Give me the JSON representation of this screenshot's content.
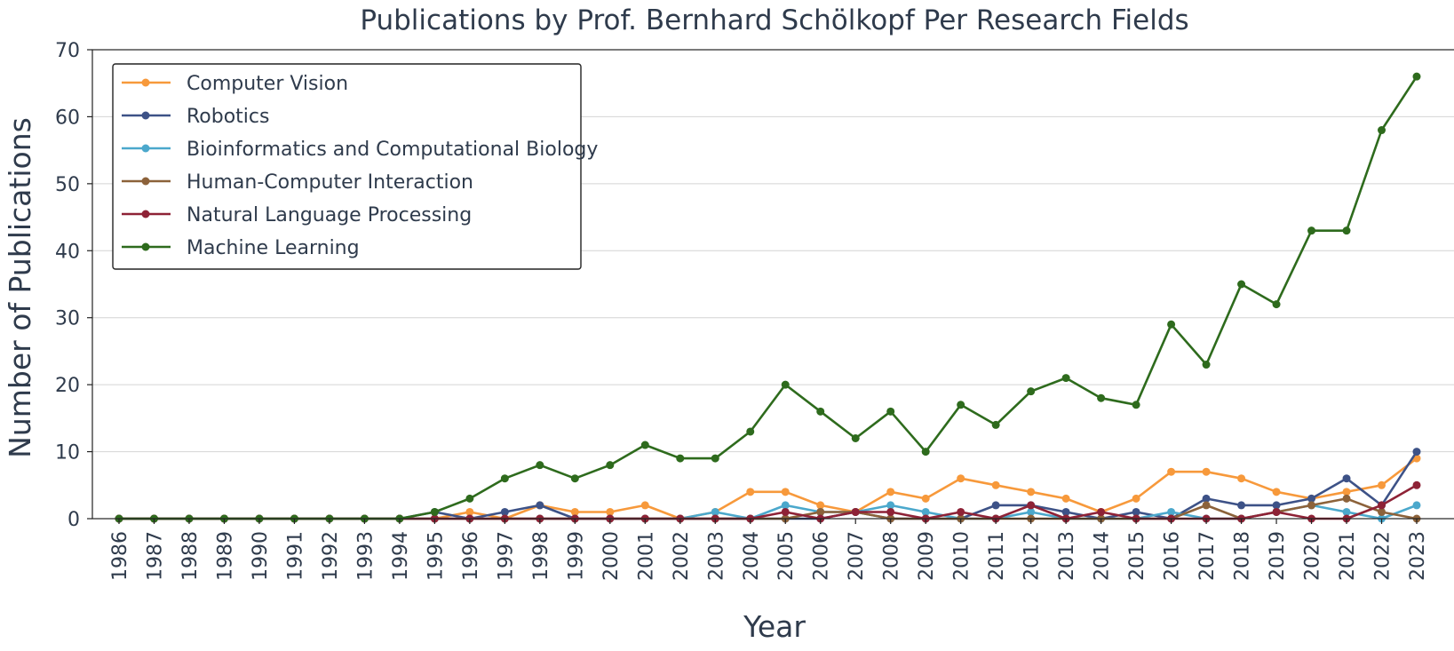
{
  "chart_data": {
    "type": "line",
    "title": "Publications by Prof. Bernhard Schölkopf Per Research Fields",
    "xlabel": "Year",
    "ylabel": "Number of Publications",
    "ylim": [
      0,
      70
    ],
    "yticks": [
      "0",
      "10",
      "20",
      "30",
      "40",
      "50",
      "60",
      "70"
    ],
    "grid": "horizontal",
    "legend_position": "top-left",
    "x": [
      "1986",
      "1987",
      "1988",
      "1989",
      "1990",
      "1991",
      "1992",
      "1993",
      "1994",
      "1995",
      "1996",
      "1997",
      "1998",
      "1999",
      "2000",
      "2001",
      "2002",
      "2003",
      "2004",
      "2005",
      "2006",
      "2007",
      "2008",
      "2009",
      "2010",
      "2011",
      "2012",
      "2013",
      "2014",
      "2015",
      "2016",
      "2017",
      "2018",
      "2019",
      "2020",
      "2021",
      "2022",
      "2023"
    ],
    "series": [
      {
        "name": "Computer Vision",
        "color": "#f7993b",
        "values": [
          0,
          0,
          0,
          0,
          0,
          0,
          0,
          0,
          0,
          0,
          1,
          0,
          2,
          1,
          1,
          2,
          0,
          1,
          4,
          4,
          2,
          1,
          4,
          3,
          6,
          5,
          4,
          3,
          1,
          3,
          7,
          7,
          6,
          4,
          3,
          4,
          5,
          9
        ]
      },
      {
        "name": "Robotics",
        "color": "#3d5287",
        "values": [
          0,
          0,
          0,
          0,
          0,
          0,
          0,
          0,
          0,
          1,
          0,
          1,
          2,
          0,
          0,
          0,
          0,
          0,
          0,
          0,
          0,
          1,
          0,
          0,
          0,
          2,
          2,
          1,
          0,
          1,
          0,
          3,
          2,
          2,
          3,
          6,
          2,
          10
        ]
      },
      {
        "name": "Bioinformatics and Computational Biology",
        "color": "#4ba8cc",
        "values": [
          0,
          0,
          0,
          0,
          0,
          0,
          0,
          0,
          0,
          0,
          0,
          0,
          0,
          0,
          0,
          0,
          0,
          1,
          0,
          2,
          1,
          1,
          2,
          1,
          0,
          0,
          1,
          0,
          0,
          0,
          1,
          0,
          0,
          1,
          2,
          1,
          0,
          2
        ]
      },
      {
        "name": "Human-Computer Interaction",
        "color": "#8c623a",
        "values": [
          0,
          0,
          0,
          0,
          0,
          0,
          0,
          0,
          0,
          0,
          0,
          0,
          0,
          0,
          0,
          0,
          0,
          0,
          0,
          0,
          1,
          1,
          0,
          0,
          0,
          0,
          0,
          0,
          0,
          0,
          0,
          2,
          0,
          1,
          2,
          3,
          1,
          0
        ]
      },
      {
        "name": "Natural Language Processing",
        "color": "#8e2236",
        "values": [
          0,
          0,
          0,
          0,
          0,
          0,
          0,
          0,
          0,
          0,
          0,
          0,
          0,
          0,
          0,
          0,
          0,
          0,
          0,
          1,
          0,
          1,
          1,
          0,
          1,
          0,
          2,
          0,
          1,
          0,
          0,
          0,
          0,
          1,
          0,
          0,
          2,
          5
        ]
      },
      {
        "name": "Machine Learning",
        "color": "#2e6b1d",
        "values": [
          0,
          0,
          0,
          0,
          0,
          0,
          0,
          0,
          0,
          1,
          3,
          6,
          8,
          6,
          8,
          11,
          9,
          9,
          13,
          20,
          16,
          12,
          16,
          10,
          17,
          14,
          19,
          21,
          18,
          17,
          29,
          23,
          35,
          32,
          43,
          43,
          58,
          66
        ]
      }
    ]
  }
}
